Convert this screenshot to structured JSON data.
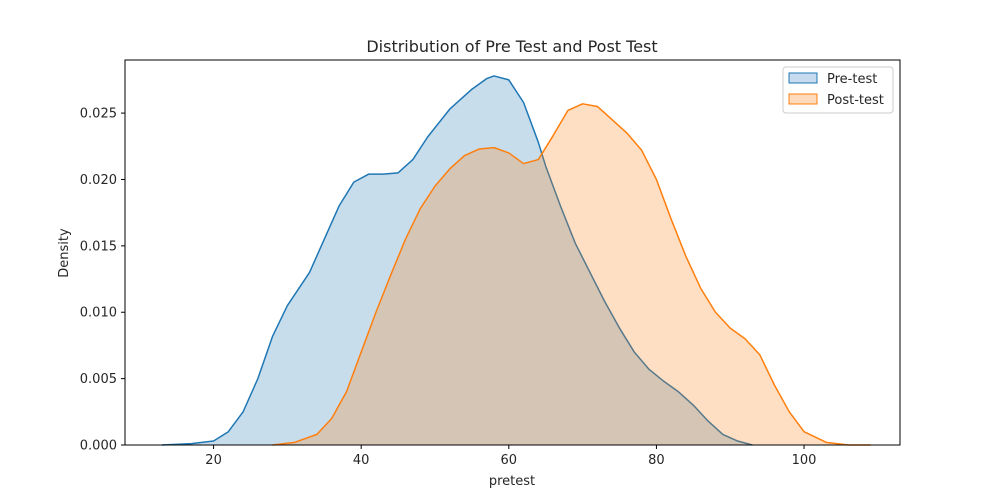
{
  "chart_data": {
    "type": "area",
    "title": "Distribution of Pre Test and Post Test",
    "xlabel": "pretest",
    "ylabel": "Density",
    "xlim": [
      8,
      113
    ],
    "ylim": [
      0,
      0.029
    ],
    "xticks": [
      20,
      40,
      60,
      80,
      100
    ],
    "yticks": [
      0.0,
      0.005,
      0.01,
      0.015,
      0.02,
      0.025
    ],
    "ytick_labels": [
      "0.000",
      "0.005",
      "0.010",
      "0.015",
      "0.020",
      "0.025"
    ],
    "grid": false,
    "legend_position": "top-right",
    "series": [
      {
        "name": "Pre-test",
        "color": "#1f77b4",
        "fill": "#c6dbed",
        "x": [
          13,
          17,
          20,
          22,
          24,
          26,
          28,
          30,
          33,
          35,
          37,
          39,
          41,
          43,
          45,
          47,
          49,
          52,
          55,
          57,
          58,
          60,
          62,
          64,
          65,
          67,
          69,
          71,
          73,
          75,
          77,
          79,
          81,
          83,
          85,
          87,
          89,
          91,
          93
        ],
        "y": [
          0.0,
          0.0001,
          0.0003,
          0.001,
          0.0025,
          0.005,
          0.0082,
          0.0105,
          0.013,
          0.0155,
          0.018,
          0.0198,
          0.0204,
          0.0204,
          0.0205,
          0.0215,
          0.0232,
          0.0253,
          0.0268,
          0.0276,
          0.0278,
          0.0275,
          0.0258,
          0.0228,
          0.021,
          0.018,
          0.0152,
          0.013,
          0.0108,
          0.0088,
          0.007,
          0.0057,
          0.0048,
          0.004,
          0.003,
          0.0018,
          0.0008,
          0.0003,
          0.0
        ]
      },
      {
        "name": "Post-test",
        "color": "#ff7f0e",
        "fill": "#ffdbbb",
        "x": [
          28,
          31,
          34,
          36,
          38,
          40,
          42,
          44,
          46,
          48,
          50,
          52,
          54,
          56,
          58,
          60,
          62,
          64,
          66,
          68,
          70,
          72,
          74,
          76,
          78,
          80,
          82,
          84,
          86,
          88,
          90,
          92,
          94,
          96,
          98,
          100,
          103,
          106,
          109
        ],
        "y": [
          0.0,
          0.0002,
          0.0008,
          0.002,
          0.004,
          0.007,
          0.01,
          0.0128,
          0.0155,
          0.0178,
          0.0195,
          0.0208,
          0.0218,
          0.0223,
          0.0224,
          0.022,
          0.0212,
          0.0215,
          0.0233,
          0.0252,
          0.0257,
          0.0255,
          0.0245,
          0.0235,
          0.0222,
          0.02,
          0.017,
          0.0142,
          0.0118,
          0.01,
          0.0088,
          0.008,
          0.0068,
          0.0045,
          0.0025,
          0.001,
          0.0002,
          0.0,
          0.0
        ]
      }
    ]
  }
}
